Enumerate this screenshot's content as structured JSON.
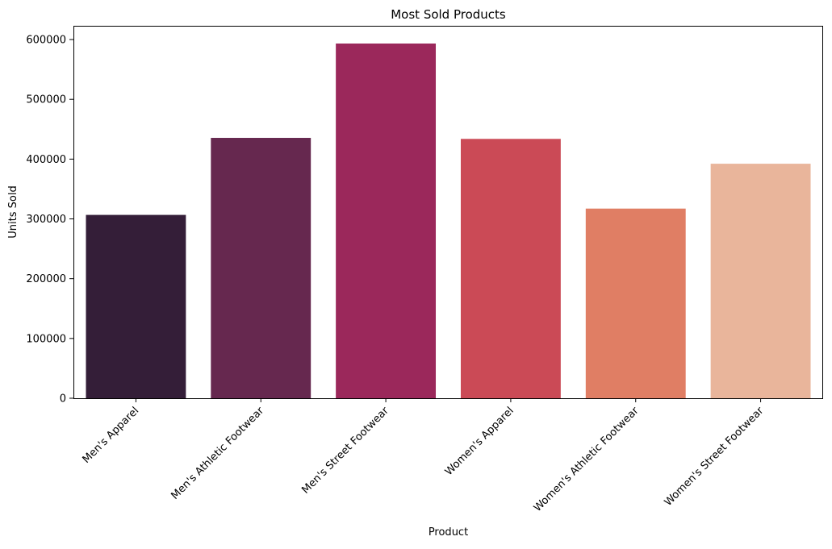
{
  "chart_data": {
    "type": "bar",
    "title": "Most Sold Products",
    "xlabel": "Product",
    "ylabel": "Units Sold",
    "categories": [
      "Men's Apparel",
      "Men's Athletic Footwear",
      "Men's Street Footwear",
      "Women's Apparel",
      "Women's Athletic Footwear",
      "Women's Street Footwear"
    ],
    "values": [
      306683,
      435526,
      593320,
      433827,
      317236,
      392269
    ],
    "colors": [
      "#341e38",
      "#66284f",
      "#9b285b",
      "#cb4a56",
      "#e07e64",
      "#e9b59b"
    ],
    "ylim": [
      0,
      622986
    ],
    "yticks": [
      0,
      100000,
      200000,
      300000,
      400000,
      500000,
      600000
    ],
    "ytick_labels": [
      "0",
      "100000",
      "200000",
      "300000",
      "400000",
      "500000",
      "600000"
    ],
    "grid": false,
    "legend": "none",
    "xtick_rotation_deg": 45
  }
}
